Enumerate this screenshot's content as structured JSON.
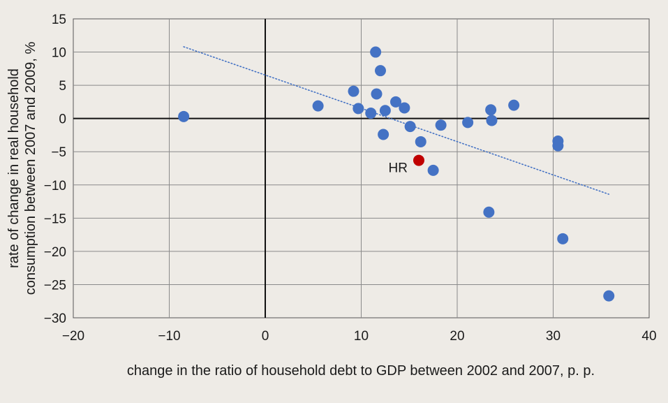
{
  "chart_data": {
    "type": "scatter",
    "title": "",
    "xlabel": "change in the ratio of household debt to GDP between 2002 and 2007, p. p.",
    "ylabel_lines": [
      "rate of change in real household",
      "consumption between 2007 and 2009, %"
    ],
    "xlim": [
      -20,
      40
    ],
    "ylim": [
      -30,
      15
    ],
    "x_ticks": [
      -20,
      -10,
      0,
      10,
      20,
      30,
      40
    ],
    "y_ticks": [
      15,
      10,
      5,
      0,
      -5,
      -10,
      -15,
      -20,
      -25,
      -30
    ],
    "x_tick_labels": [
      "−20",
      "−10",
      "0",
      "10",
      "20",
      "30",
      "40"
    ],
    "y_tick_labels": [
      "15",
      "10",
      "5",
      "0",
      "−5",
      "−10",
      "−15",
      "−20",
      "−25",
      "−30"
    ],
    "grid": true,
    "point_color": "#4472c4",
    "highlight_color": "#c00000",
    "trendline": {
      "x": [
        -8.5,
        35.8
      ],
      "y": [
        10.8,
        -11.4
      ],
      "color": "#4472c4",
      "style": "dotted"
    },
    "points": [
      {
        "x": -8.5,
        "y": 0.3
      },
      {
        "x": 5.5,
        "y": 1.9
      },
      {
        "x": 9.2,
        "y": 4.1
      },
      {
        "x": 9.7,
        "y": 1.5
      },
      {
        "x": 11.0,
        "y": 0.8
      },
      {
        "x": 11.5,
        "y": 10.0
      },
      {
        "x": 11.6,
        "y": 3.7
      },
      {
        "x": 12.0,
        "y": 7.2
      },
      {
        "x": 12.3,
        "y": -2.4
      },
      {
        "x": 12.5,
        "y": 1.2
      },
      {
        "x": 13.6,
        "y": 2.5
      },
      {
        "x": 14.5,
        "y": 1.6
      },
      {
        "x": 15.1,
        "y": -1.2
      },
      {
        "x": 16.2,
        "y": -3.5
      },
      {
        "x": 17.5,
        "y": -7.8
      },
      {
        "x": 18.3,
        "y": -1.0
      },
      {
        "x": 21.1,
        "y": -0.6
      },
      {
        "x": 23.3,
        "y": -14.1
      },
      {
        "x": 23.5,
        "y": 1.3
      },
      {
        "x": 23.6,
        "y": -0.3
      },
      {
        "x": 25.9,
        "y": 2.0
      },
      {
        "x": 30.5,
        "y": -3.4
      },
      {
        "x": 30.5,
        "y": -4.1
      },
      {
        "x": 31.0,
        "y": -18.1
      },
      {
        "x": 35.8,
        "y": -26.7
      }
    ],
    "highlight": {
      "x": 16.0,
      "y": -6.3,
      "label": "HR"
    }
  }
}
